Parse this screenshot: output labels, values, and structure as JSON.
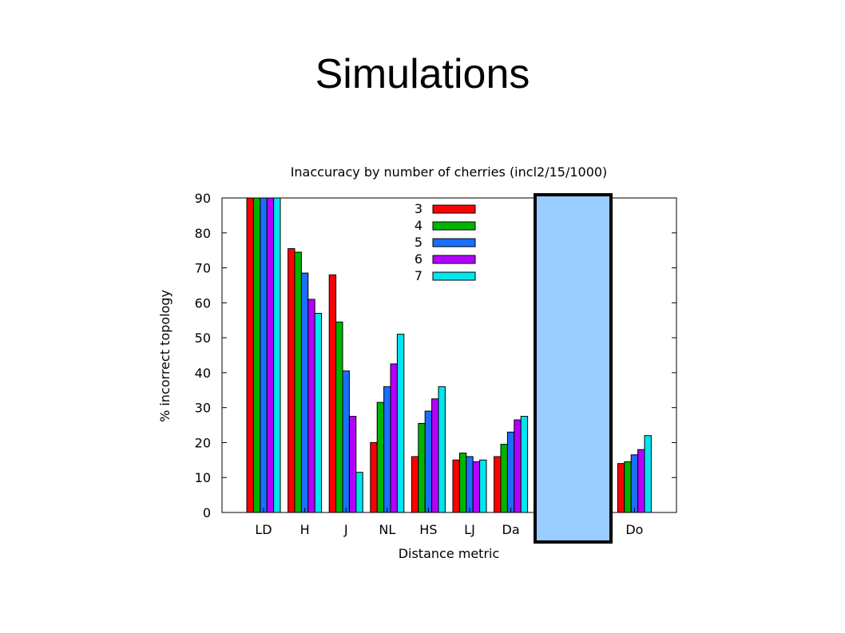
{
  "slide": {
    "title": "Simulations"
  },
  "colors": {
    "series": [
      "#ff0000",
      "#00b400",
      "#1a6fff",
      "#b400ff",
      "#00e5ee"
    ],
    "occluder_fill": "#99ccff",
    "occluder_border": "#000000"
  },
  "chart_data": {
    "type": "bar",
    "title": "Inaccuracy by number of cherries (incl2/15/1000)",
    "xlabel": "Distance metric",
    "ylabel": "% incorrect topology",
    "ylim": [
      0,
      90
    ],
    "yticks": [
      0,
      10,
      20,
      30,
      40,
      50,
      60,
      70,
      80,
      90
    ],
    "grid": false,
    "legend_position": "top-center",
    "categories": [
      "LD",
      "H",
      "J",
      "NL",
      "HS",
      "LJ",
      "Da",
      "",
      "",
      "Do"
    ],
    "occluded_categories": [
      7,
      8
    ],
    "series": [
      {
        "name": "3",
        "values": [
          90,
          75.5,
          68,
          20,
          16,
          15,
          16,
          null,
          null,
          14
        ]
      },
      {
        "name": "4",
        "values": [
          90,
          74.5,
          54.5,
          31.5,
          25.5,
          17,
          19.5,
          null,
          null,
          14.5
        ]
      },
      {
        "name": "5",
        "values": [
          90,
          68.5,
          40.5,
          36,
          29,
          16,
          23,
          null,
          null,
          16.5
        ]
      },
      {
        "name": "6",
        "values": [
          90,
          61,
          27.5,
          42.5,
          32.5,
          14.5,
          26.5,
          null,
          null,
          18
        ]
      },
      {
        "name": "7",
        "values": [
          90,
          57,
          11.5,
          51,
          36,
          15,
          27.5,
          null,
          null,
          22
        ]
      }
    ]
  }
}
